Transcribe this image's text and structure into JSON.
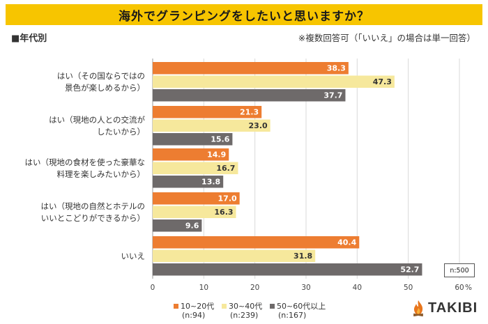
{
  "title": "海外でグランピングをしたいと思いますか？",
  "subtitle_left": "■年代別",
  "subtitle_right": "※複数回答可（「いいえ」の場合は単一回答）",
  "sample_size": "n:500",
  "logo_text": "TAKIBI",
  "legend": [
    {
      "name": "10~20代",
      "n": "(n:94)"
    },
    {
      "name": "30~40代",
      "n": "(n:239)"
    },
    {
      "name": "50~60代以上",
      "n": "(n:167)"
    }
  ],
  "chart_data": {
    "type": "bar",
    "orientation": "horizontal",
    "title": "海外でグランピングをしたいと思いますか？",
    "unit": "%",
    "xlim": [
      0,
      60
    ],
    "xticks": [
      0,
      10,
      20,
      30,
      40,
      50,
      60
    ],
    "xtick_labels": [
      "0",
      "10",
      "20",
      "30",
      "40",
      "50",
      "60"
    ],
    "categories": [
      [
        "はい（その国ならではの",
        "景色が楽しめるから）"
      ],
      [
        "はい（現地の人との交流が",
        "したいから）"
      ],
      [
        "はい（現地の食材を使った豪華な",
        "料理を楽しみたいから）"
      ],
      [
        "はい（現地の自然とホテルの",
        "いいとこどりができるから）"
      ],
      [
        "いいえ"
      ]
    ],
    "series": [
      {
        "name": "10~20代",
        "color": "#ed7d31",
        "values": [
          38.3,
          21.3,
          14.9,
          17.0,
          40.4
        ],
        "labels": [
          "38.3",
          "21.3",
          "14.9",
          "17.0",
          "40.4"
        ]
      },
      {
        "name": "30~40代",
        "color": "#f6e89c",
        "values": [
          47.3,
          23.0,
          16.7,
          16.3,
          31.8
        ],
        "labels": [
          "47.3",
          "23.0",
          "16.7",
          "16.3",
          "31.8"
        ]
      },
      {
        "name": "50~60代以上",
        "color": "#6e6a6a",
        "values": [
          37.7,
          15.6,
          13.8,
          9.6,
          52.7
        ],
        "labels": [
          "37.7",
          "15.6",
          "13.8",
          "9.6",
          "52.7"
        ]
      }
    ]
  }
}
